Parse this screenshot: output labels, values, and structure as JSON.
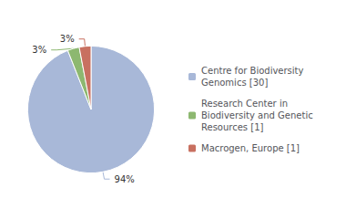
{
  "chart_data": {
    "type": "pie",
    "categories": [
      "Centre for Biodiversity\nGenomics [30]",
      "Research Center in\nBiodiversity and Genetic\nResources [1]",
      "Macrogen, Europe [1]"
    ],
    "values": [
      94,
      3,
      3
    ],
    "value_labels": [
      "94%",
      "3%",
      "3%"
    ],
    "colors": [
      "#a8b8d8",
      "#8db870",
      "#c87060"
    ],
    "data_labels": true,
    "legend": "right"
  }
}
